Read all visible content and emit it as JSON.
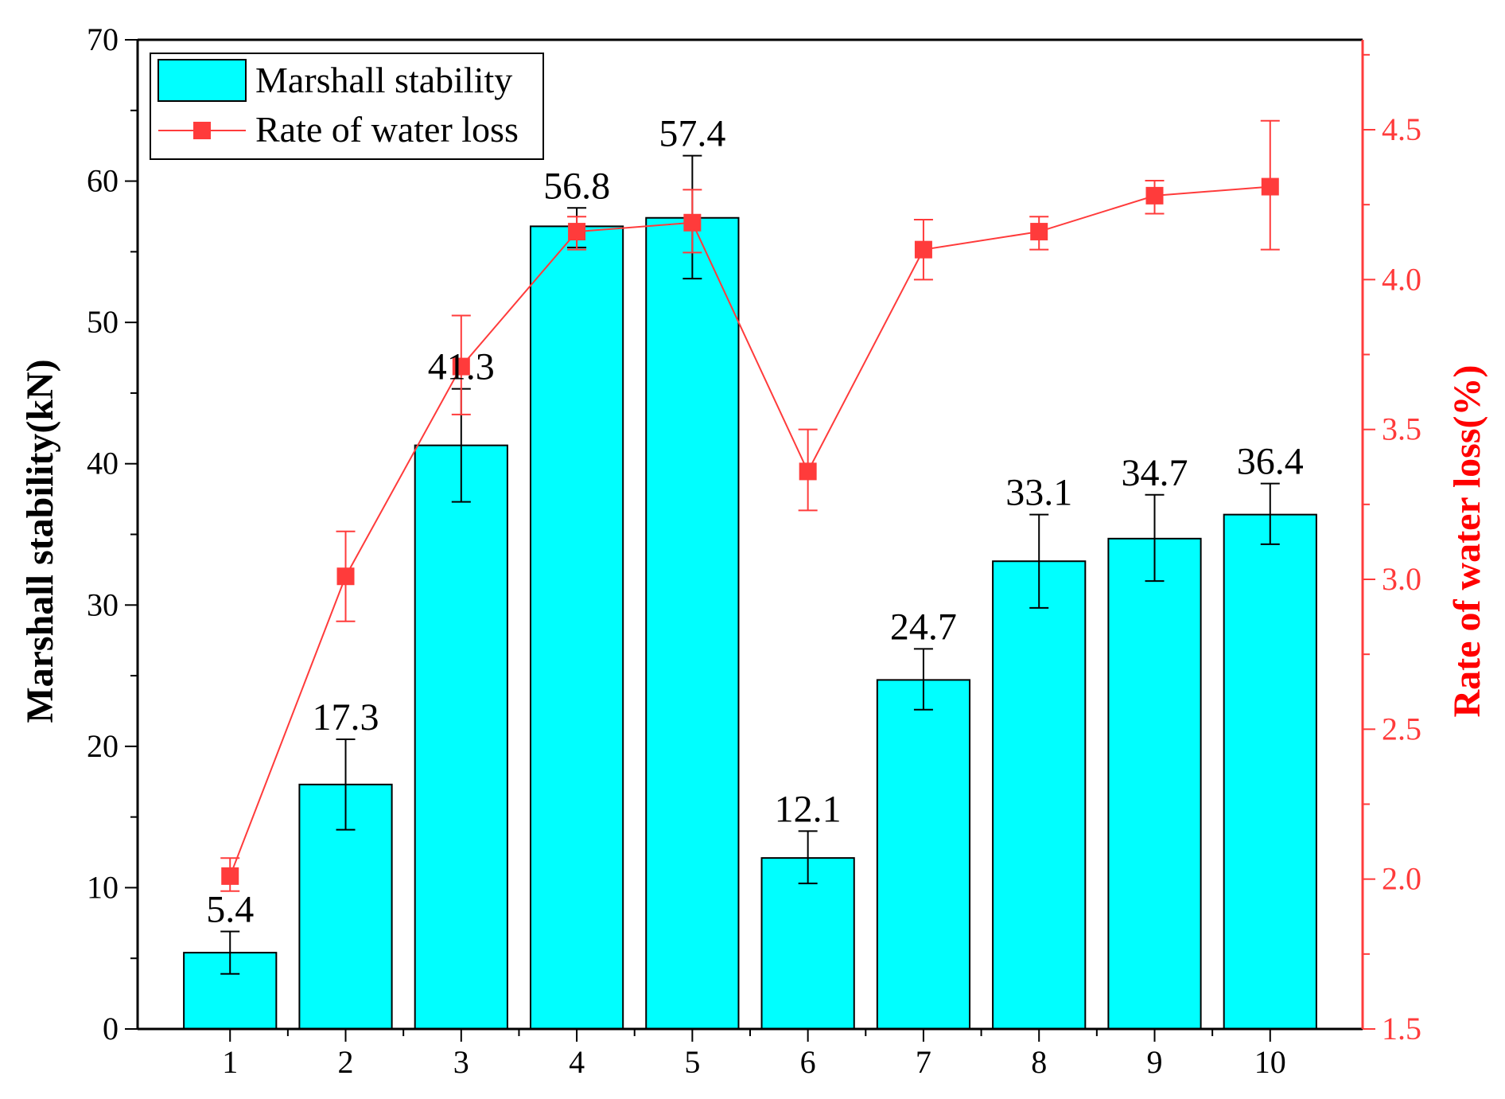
{
  "chart_data": {
    "type": "bar",
    "categories": [
      "1",
      "2",
      "3",
      "4",
      "5",
      "6",
      "7",
      "8",
      "9",
      "10"
    ],
    "series": [
      {
        "name": "Marshall stability",
        "type": "bar",
        "axis": "left",
        "values": [
          5.4,
          17.3,
          41.3,
          56.8,
          57.4,
          12.1,
          24.7,
          33.1,
          34.7,
          36.4
        ],
        "value_labels": [
          "5.4",
          "17.3",
          "41.3",
          "56.8",
          "57.4",
          "12.1",
          "24.7",
          "33.1",
          "34.7",
          "36.4"
        ],
        "error_high": [
          6.9,
          20.5,
          45.3,
          58.1,
          61.8,
          14.0,
          26.9,
          36.4,
          37.8,
          38.6
        ],
        "error_low": [
          3.9,
          14.1,
          37.3,
          55.3,
          53.1,
          10.3,
          22.6,
          29.8,
          31.7,
          34.3
        ],
        "color": "#00FFFF"
      },
      {
        "name": "Rate of water loss",
        "type": "line",
        "axis": "right",
        "values": [
          2.01,
          3.01,
          3.71,
          4.16,
          4.19,
          3.36,
          4.1,
          4.16,
          4.28,
          4.31
        ],
        "error_high": [
          2.07,
          3.16,
          3.88,
          4.21,
          4.3,
          3.5,
          4.2,
          4.21,
          4.33,
          4.53
        ],
        "error_low": [
          1.96,
          2.86,
          3.55,
          4.1,
          4.09,
          3.23,
          4.0,
          4.1,
          4.22,
          4.1
        ],
        "color": "#FF3B3B"
      }
    ],
    "ylabel": "Marshall stability(kN)",
    "y2label": "Rate of water loss(%)",
    "ylim": [
      0,
      70
    ],
    "y2lim": [
      1.5,
      4.8
    ],
    "yticks": [
      "0",
      "10",
      "20",
      "30",
      "40",
      "50",
      "60",
      "70"
    ],
    "y2ticks": [
      "1.5",
      "2.0",
      "2.5",
      "3.0",
      "3.5",
      "4.0",
      "4.5"
    ],
    "legend_position": "top-left",
    "grid": false
  }
}
